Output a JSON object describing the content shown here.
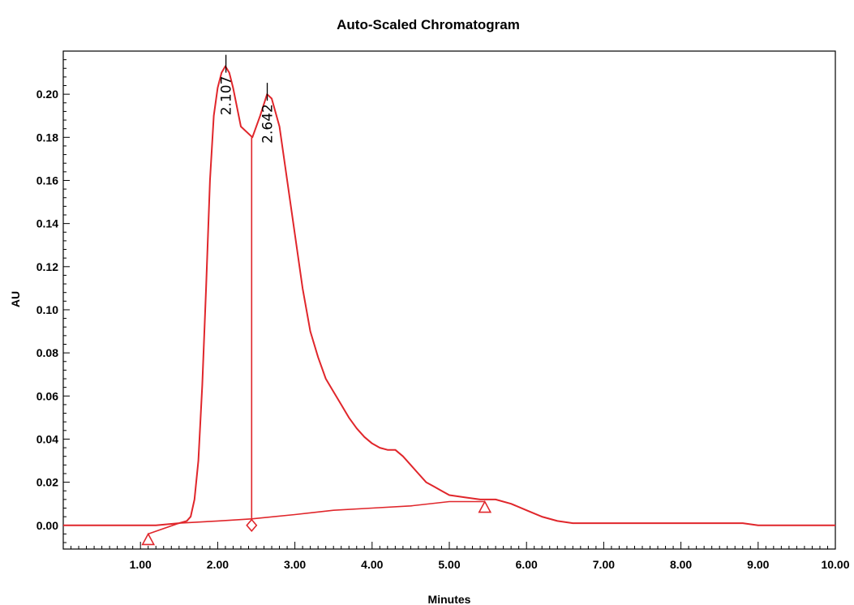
{
  "chart_data": {
    "type": "line",
    "title": "Auto-Scaled Chromatogram",
    "xlabel": "Minutes",
    "ylabel": "AU",
    "xlim": [
      0,
      10
    ],
    "ylim": [
      -0.011,
      0.22
    ],
    "x_ticks": [
      "1.00",
      "2.00",
      "3.00",
      "4.00",
      "5.00",
      "6.00",
      "7.00",
      "8.00",
      "9.00",
      "10.00"
    ],
    "y_ticks": [
      "0.00",
      "0.02",
      "0.04",
      "0.06",
      "0.08",
      "0.10",
      "0.12",
      "0.14",
      "0.16",
      "0.18",
      "0.20"
    ],
    "grid": false,
    "line_color": "#e0262b",
    "series": [
      {
        "values": [
          [
            0.0,
            0.0
          ],
          [
            1.0,
            0.0
          ],
          [
            1.2,
            0.0
          ],
          [
            1.5,
            0.001
          ],
          [
            1.6,
            0.002
          ],
          [
            1.65,
            0.004
          ],
          [
            1.7,
            0.012
          ],
          [
            1.75,
            0.03
          ],
          [
            1.8,
            0.065
          ],
          [
            1.85,
            0.11
          ],
          [
            1.9,
            0.16
          ],
          [
            1.95,
            0.19
          ],
          [
            2.0,
            0.203
          ],
          [
            2.05,
            0.21
          ],
          [
            2.1,
            0.213
          ],
          [
            2.15,
            0.21
          ],
          [
            2.2,
            0.203
          ],
          [
            2.3,
            0.185
          ],
          [
            2.45,
            0.18
          ],
          [
            2.55,
            0.19
          ],
          [
            2.64,
            0.2
          ],
          [
            2.7,
            0.198
          ],
          [
            2.8,
            0.185
          ],
          [
            2.9,
            0.16
          ],
          [
            3.0,
            0.135
          ],
          [
            3.1,
            0.11
          ],
          [
            3.2,
            0.09
          ],
          [
            3.3,
            0.078
          ],
          [
            3.4,
            0.068
          ],
          [
            3.5,
            0.062
          ],
          [
            3.6,
            0.056
          ],
          [
            3.7,
            0.05
          ],
          [
            3.8,
            0.045
          ],
          [
            3.9,
            0.041
          ],
          [
            4.0,
            0.038
          ],
          [
            4.1,
            0.036
          ],
          [
            4.2,
            0.035
          ],
          [
            4.3,
            0.035
          ],
          [
            4.4,
            0.032
          ],
          [
            4.5,
            0.028
          ],
          [
            4.6,
            0.024
          ],
          [
            4.7,
            0.02
          ],
          [
            4.8,
            0.018
          ],
          [
            4.9,
            0.016
          ],
          [
            5.0,
            0.014
          ],
          [
            5.2,
            0.013
          ],
          [
            5.4,
            0.012
          ],
          [
            5.6,
            0.012
          ],
          [
            5.8,
            0.01
          ],
          [
            6.0,
            0.007
          ],
          [
            6.2,
            0.004
          ],
          [
            6.4,
            0.002
          ],
          [
            6.6,
            0.001
          ],
          [
            7.0,
            0.001
          ],
          [
            8.0,
            0.001
          ],
          [
            8.8,
            0.001
          ],
          [
            9.0,
            0.0
          ],
          [
            10.0,
            0.0
          ]
        ]
      }
    ],
    "baseline": [
      [
        1.1,
        -0.004
      ],
      [
        1.5,
        0.001
      ],
      [
        2.0,
        0.002
      ],
      [
        2.44,
        0.003
      ],
      [
        3.0,
        0.005
      ],
      [
        3.5,
        0.007
      ],
      [
        4.0,
        0.008
      ],
      [
        4.5,
        0.009
      ],
      [
        5.0,
        0.011
      ],
      [
        5.46,
        0.011
      ]
    ],
    "peak_split": {
      "x": 2.44,
      "y_top": 0.18,
      "y_bottom": 0.003
    },
    "peaks": [
      {
        "label": "2.107",
        "rt": 2.107,
        "height": 0.213
      },
      {
        "label": "2.642",
        "rt": 2.642,
        "height": 0.2
      }
    ],
    "markers": [
      {
        "shape": "triangle",
        "x": 1.1,
        "y": -0.004
      },
      {
        "shape": "diamond",
        "x": 2.44,
        "y": 0.0
      },
      {
        "shape": "triangle",
        "x": 5.46,
        "y": 0.011
      }
    ]
  }
}
